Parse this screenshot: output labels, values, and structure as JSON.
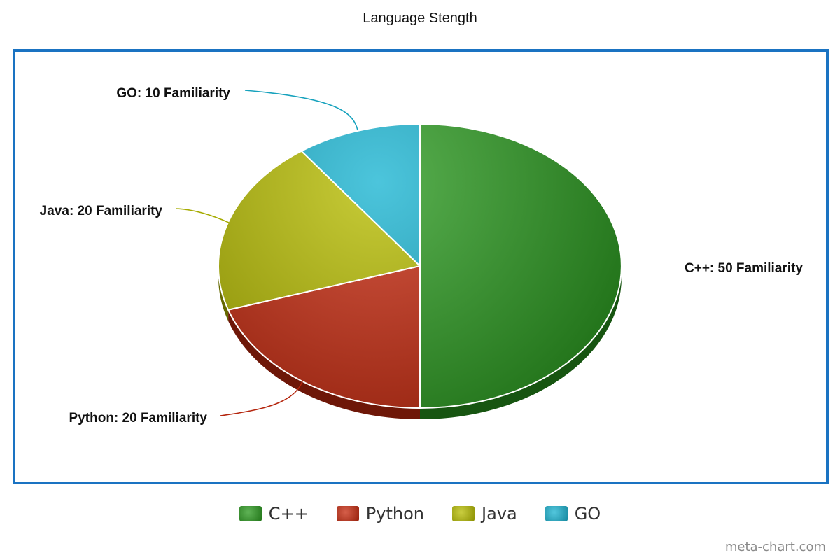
{
  "chart_data": {
    "type": "pie",
    "title": "Language Stength",
    "slices": [
      {
        "name": "C++",
        "value": 50,
        "label": "C++: 50 Familiarity",
        "color": "#2a9a1e"
      },
      {
        "name": "Python",
        "value": 20,
        "label": "Python: 20 Familiarity",
        "color": "#c8290e"
      },
      {
        "name": "Java",
        "value": 20,
        "label": "Java: 20 Familiarity",
        "color": "#b8be00"
      },
      {
        "name": "GO",
        "value": 10,
        "label": "GO: 10 Familiarity",
        "color": "#1ab4d2"
      }
    ],
    "legend": [
      "C++",
      "Python",
      "Java",
      "GO"
    ],
    "legend_position": "bottom",
    "style": "3d-tilted",
    "frame_color": "#1a73c2"
  },
  "watermark": "meta-chart.com"
}
